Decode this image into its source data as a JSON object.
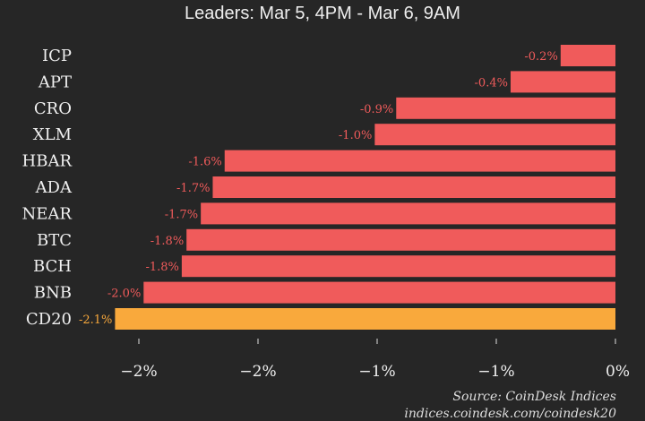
{
  "chart_data": {
    "type": "bar",
    "orientation": "horizontal",
    "title": "",
    "subtitle": "Leaders: Mar 5, 4PM - Mar 6, 9AM",
    "categories": [
      "ICP",
      "APT",
      "CRO",
      "XLM",
      "HBAR",
      "ADA",
      "NEAR",
      "BTC",
      "BCH",
      "BNB",
      "CD20"
    ],
    "values": [
      -0.23,
      -0.44,
      -0.92,
      -1.01,
      -1.64,
      -1.69,
      -1.74,
      -1.8,
      -1.82,
      -1.98,
      -2.1
    ],
    "data_labels": [
      "-0.2%",
      "-0.4%",
      "-0.9%",
      "-1.0%",
      "-1.6%",
      "-1.7%",
      "-1.7%",
      "-1.8%",
      "-1.8%",
      "-2.0%",
      "-2.1%"
    ],
    "x_ticks": [
      -2.0,
      -1.5,
      -1.0,
      -0.5,
      0
    ],
    "x_tick_labels": [
      "−2%",
      "−2%",
      "−1%",
      "−1%",
      "0%"
    ],
    "xlim": [
      -2.1,
      0
    ],
    "grid": false,
    "colors": {
      "default": "#f05b5b",
      "highlight": "#f9a93c",
      "background": "#262626",
      "default_label": "#f05b5b",
      "highlight_label": "#f9a93c"
    },
    "highlight_category": "CD20"
  },
  "footer": {
    "source": "Source: CoinDesk Indices",
    "url": "indices.coindesk.com/coindesk20"
  }
}
